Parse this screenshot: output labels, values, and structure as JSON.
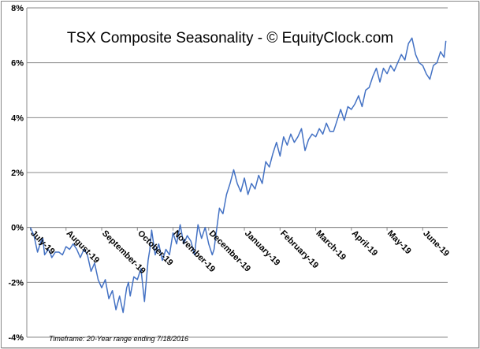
{
  "chart_data": {
    "type": "line",
    "title": "TSX Composite Seasonality - © EquityClock.com",
    "footnote": "Timeframe: 20-Year range ending 7/18/2016",
    "xlabel": "",
    "ylabel": "",
    "ylim": [
      -4,
      8
    ],
    "y_ticks": [
      -4,
      -2,
      0,
      2,
      4,
      6,
      8
    ],
    "y_tick_labels": [
      "-4%",
      "-2%",
      "0%",
      "2%",
      "4%",
      "6%",
      "8%"
    ],
    "x_tick_labels": [
      "July-19",
      "August-19",
      "September-19",
      "October-19",
      "November-19",
      "December-19",
      "January-19",
      "February-19",
      "March-19",
      "April-19",
      "May-19",
      "June-19"
    ],
    "x_tick_positions": [
      0,
      1,
      2,
      3,
      4,
      5,
      6,
      7,
      8,
      9,
      10,
      11
    ],
    "xlim": [
      -0.1,
      11.7
    ],
    "grid": "horizontal",
    "line_color": "#4472c4",
    "series": [
      {
        "x": [
          0,
          0.1,
          0.2,
          0.3,
          0.35,
          0.4,
          0.5,
          0.55,
          0.6,
          0.7,
          0.8,
          0.9,
          1.0,
          1.1,
          1.2,
          1.3,
          1.4,
          1.5,
          1.6,
          1.7,
          1.8,
          1.9,
          2.0,
          2.1,
          2.2,
          2.3,
          2.4,
          2.5,
          2.6,
          2.7,
          2.75,
          2.8,
          2.9,
          3.0,
          3.1,
          3.2,
          3.3,
          3.35,
          3.4,
          3.5,
          3.6,
          3.7,
          3.8,
          3.9,
          4.0,
          4.1,
          4.2,
          4.3,
          4.4,
          4.5,
          4.6,
          4.7,
          4.8,
          4.9,
          5.0,
          5.1,
          5.15,
          5.2,
          5.3,
          5.4,
          5.5,
          5.6,
          5.7,
          5.8,
          5.9,
          6.0,
          6.1,
          6.2,
          6.3,
          6.4,
          6.5,
          6.6,
          6.7,
          6.8,
          6.9,
          7.0,
          7.1,
          7.2,
          7.3,
          7.4,
          7.5,
          7.6,
          7.7,
          7.8,
          7.9,
          8.0,
          8.1,
          8.2,
          8.3,
          8.4,
          8.5,
          8.6,
          8.7,
          8.8,
          8.9,
          9.0,
          9.1,
          9.2,
          9.3,
          9.4,
          9.5,
          9.6,
          9.7,
          9.8,
          9.9,
          10.0,
          10.1,
          10.2,
          10.3,
          10.4,
          10.5,
          10.6,
          10.7,
          10.8,
          10.9,
          11.0,
          11.1,
          11.2,
          11.3,
          11.4,
          11.5,
          11.6,
          11.65
        ],
        "y": [
          0.0,
          -0.3,
          -0.9,
          -0.5,
          -0.4,
          -1.0,
          -0.8,
          -0.9,
          -1.1,
          -0.9,
          -0.9,
          -1.0,
          -0.7,
          -0.8,
          -0.6,
          -0.8,
          -1.1,
          -0.8,
          -1.0,
          -1.6,
          -1.3,
          -1.9,
          -2.2,
          -1.9,
          -2.6,
          -2.3,
          -3.0,
          -2.5,
          -3.1,
          -2.2,
          -2.0,
          -2.5,
          -1.8,
          -1.9,
          -1.5,
          -2.7,
          -1.2,
          -0.8,
          -0.1,
          -1.0,
          -0.6,
          -1.2,
          -0.8,
          -1.0,
          -0.2,
          -0.6,
          0.1,
          -0.6,
          -0.3,
          -0.5,
          -1.0,
          0.1,
          -0.4,
          0.0,
          -0.6,
          -1.0,
          -0.8,
          -0.3,
          0.7,
          0.5,
          1.2,
          1.6,
          2.1,
          1.6,
          1.3,
          1.8,
          1.2,
          1.6,
          1.4,
          1.9,
          1.6,
          2.4,
          2.2,
          2.7,
          3.1,
          2.6,
          3.3,
          3.0,
          3.4,
          3.1,
          3.3,
          3.6,
          2.8,
          3.2,
          3.4,
          3.3,
          3.6,
          3.4,
          3.8,
          3.5,
          3.5,
          3.9,
          4.3,
          3.9,
          4.4,
          4.3,
          4.5,
          4.8,
          4.4,
          5.0,
          5.1,
          5.5,
          5.8,
          5.3,
          5.8,
          5.6,
          5.9,
          5.7,
          6.0,
          6.3,
          6.1,
          6.7,
          6.9,
          6.3,
          6.0,
          5.9,
          5.6,
          5.4,
          5.9,
          6.0,
          6.4,
          6.2,
          6.8
        ]
      }
    ]
  }
}
